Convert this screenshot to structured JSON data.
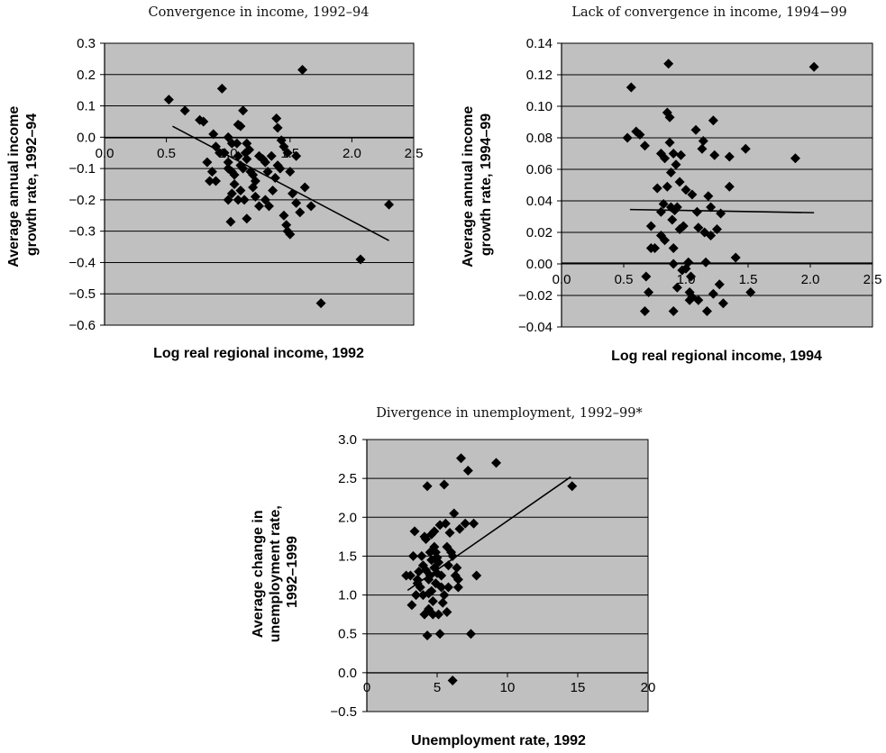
{
  "chart_data": [
    {
      "type": "scatter",
      "title": "Convergence in income, 1992–94",
      "xlabel": "Log real regional income, 1992",
      "ylabel": "Average annual income growth rate, 1992–94",
      "ylabel_lines": [
        "Average annual income",
        "growth rate, 1992–94"
      ],
      "xlim": [
        0,
        2.5
      ],
      "ylim": [
        -0.6,
        0.3
      ],
      "xticks": [
        0,
        0.5,
        1,
        1.5,
        2,
        2.5
      ],
      "xtick_labels": [
        "0.0",
        "0.5",
        "1.0",
        "1.5",
        "2.0",
        "2.5"
      ],
      "yticks": [
        -0.6,
        -0.5,
        -0.4,
        -0.3,
        -0.2,
        -0.1,
        0,
        0.1,
        0.2,
        0.3
      ],
      "ytick_labels": [
        "−0.6",
        "−0.5",
        "−0.4",
        "−0.3",
        "−0.2",
        "−0.1",
        "0.0",
        "0.1",
        "0.2",
        "0.3"
      ],
      "grid": true,
      "trendline": [
        [
          0.55,
          0.035
        ],
        [
          2.3,
          -0.33
        ]
      ],
      "points": [
        [
          0.52,
          0.12
        ],
        [
          0.65,
          0.085
        ],
        [
          0.77,
          0.055
        ],
        [
          0.8,
          0.05
        ],
        [
          0.88,
          0.01
        ],
        [
          0.9,
          -0.03
        ],
        [
          0.93,
          -0.05
        ],
        [
          0.95,
          0.155
        ],
        [
          0.97,
          -0.05
        ],
        [
          1.0,
          -0.08
        ],
        [
          0.83,
          -0.08
        ],
        [
          0.87,
          -0.11
        ],
        [
          0.85,
          -0.14
        ],
        [
          0.9,
          -0.14
        ],
        [
          1.0,
          -0.1
        ],
        [
          1.03,
          -0.11
        ],
        [
          1.05,
          -0.12
        ],
        [
          1.07,
          -0.02
        ],
        [
          1.08,
          -0.06
        ],
        [
          1.1,
          -0.09
        ],
        [
          1.12,
          -0.1
        ],
        [
          1.14,
          -0.05
        ],
        [
          1.15,
          -0.07
        ],
        [
          1.18,
          -0.11
        ],
        [
          1.2,
          -0.12
        ],
        [
          1.22,
          -0.14
        ],
        [
          1.25,
          -0.06
        ],
        [
          1.28,
          -0.07
        ],
        [
          1.3,
          -0.08
        ],
        [
          1.32,
          -0.11
        ],
        [
          1.35,
          -0.06
        ],
        [
          1.38,
          -0.13
        ],
        [
          1.4,
          -0.09
        ],
        [
          1.42,
          -0.1
        ],
        [
          1.45,
          -0.03
        ],
        [
          1.48,
          -0.05
        ],
        [
          1.5,
          -0.11
        ],
        [
          1.52,
          -0.18
        ],
        [
          1.55,
          -0.21
        ],
        [
          1.58,
          -0.24
        ],
        [
          1.0,
          0.0
        ],
        [
          1.03,
          -0.02
        ],
        [
          1.08,
          0.04
        ],
        [
          1.1,
          0.035
        ],
        [
          1.12,
          0.085
        ],
        [
          1.15,
          -0.02
        ],
        [
          1.17,
          -0.04
        ],
        [
          1.2,
          -0.16
        ],
        [
          1.22,
          -0.19
        ],
        [
          1.25,
          -0.22
        ],
        [
          1.0,
          -0.2
        ],
        [
          1.03,
          -0.18
        ],
        [
          1.05,
          -0.15
        ],
        [
          1.08,
          -0.2
        ],
        [
          1.1,
          -0.17
        ],
        [
          1.13,
          -0.2
        ],
        [
          1.02,
          -0.27
        ],
        [
          1.15,
          -0.26
        ],
        [
          1.3,
          -0.2
        ],
        [
          1.33,
          -0.22
        ],
        [
          1.36,
          -0.17
        ],
        [
          1.39,
          0.06
        ],
        [
          1.4,
          0.03
        ],
        [
          1.43,
          -0.01
        ],
        [
          1.45,
          -0.25
        ],
        [
          1.47,
          -0.28
        ],
        [
          1.48,
          -0.3
        ],
        [
          1.5,
          -0.31
        ],
        [
          1.55,
          -0.06
        ],
        [
          1.6,
          0.215
        ],
        [
          1.62,
          -0.16
        ],
        [
          1.67,
          -0.22
        ],
        [
          1.75,
          -0.53
        ],
        [
          2.07,
          -0.39
        ],
        [
          2.3,
          -0.215
        ]
      ]
    },
    {
      "type": "scatter",
      "title": "Lack of convergence in income, 1994−99",
      "xlabel": "Log real regional income, 1994",
      "ylabel": "Average annual income growth rate, 1994–99",
      "ylabel_lines": [
        "Average annual income",
        "growth rate, 1994–99"
      ],
      "xlim": [
        0,
        2.5
      ],
      "ylim": [
        -0.04,
        0.14
      ],
      "xticks": [
        0,
        0.5,
        1,
        1.5,
        2,
        2.5
      ],
      "xtick_labels": [
        "0.0",
        "0.5",
        "1.0",
        "1.5",
        "2.0",
        "2.5"
      ],
      "yticks": [
        -0.04,
        -0.02,
        0,
        0.02,
        0.04,
        0.06,
        0.08,
        0.1,
        0.12,
        0.14
      ],
      "ytick_labels": [
        "−0.04",
        "−0.02",
        "0.00",
        "0.02",
        "0.04",
        "0.06",
        "0.08",
        "0.10",
        "0.12",
        "0.14"
      ],
      "grid": true,
      "trendline": [
        [
          0.55,
          0.0345
        ],
        [
          2.03,
          0.0325
        ]
      ],
      "points": [
        [
          0.53,
          0.08
        ],
        [
          0.56,
          0.112
        ],
        [
          0.6,
          0.084
        ],
        [
          0.63,
          0.082
        ],
        [
          0.67,
          0.075
        ],
        [
          0.68,
          -0.008
        ],
        [
          0.7,
          -0.018
        ],
        [
          0.67,
          -0.03
        ],
        [
          0.72,
          0.01
        ],
        [
          0.72,
          0.024
        ],
        [
          0.75,
          0.01
        ],
        [
          0.77,
          0.048
        ],
        [
          0.8,
          0.033
        ],
        [
          0.8,
          0.07
        ],
        [
          0.8,
          0.018
        ],
        [
          0.82,
          0.038
        ],
        [
          0.83,
          0.015
        ],
        [
          0.83,
          0.067
        ],
        [
          0.85,
          0.049
        ],
        [
          0.85,
          0.096
        ],
        [
          0.86,
          0.127
        ],
        [
          0.87,
          0.093
        ],
        [
          0.87,
          0.077
        ],
        [
          0.88,
          0.058
        ],
        [
          0.88,
          0.036
        ],
        [
          0.89,
          0.028
        ],
        [
          0.9,
          0.07
        ],
        [
          0.9,
          0.01
        ],
        [
          0.9,
          0.0
        ],
        [
          0.9,
          -0.03
        ],
        [
          0.91,
          0.034
        ],
        [
          0.92,
          0.063
        ],
        [
          0.93,
          -0.015
        ],
        [
          0.93,
          0.036
        ],
        [
          0.95,
          0.052
        ],
        [
          0.95,
          0.022
        ],
        [
          0.97,
          -0.004
        ],
        [
          0.98,
          0.024
        ],
        [
          1.0,
          0.047
        ],
        [
          1.0,
          -0.003
        ],
        [
          1.02,
          0.001
        ],
        [
          1.03,
          -0.018
        ],
        [
          1.03,
          -0.023
        ],
        [
          1.04,
          -0.008
        ],
        [
          1.05,
          -0.021
        ],
        [
          1.05,
          0.044
        ],
        [
          1.08,
          0.085
        ],
        [
          1.09,
          0.033
        ],
        [
          1.1,
          0.023
        ],
        [
          1.1,
          -0.023
        ],
        [
          1.13,
          0.073
        ],
        [
          1.14,
          0.078
        ],
        [
          1.15,
          0.02
        ],
        [
          1.16,
          0.001
        ],
        [
          1.17,
          -0.03
        ],
        [
          1.18,
          0.043
        ],
        [
          1.2,
          0.018
        ],
        [
          1.2,
          0.036
        ],
        [
          1.22,
          0.091
        ],
        [
          1.23,
          0.069
        ],
        [
          1.25,
          0.022
        ],
        [
          1.27,
          -0.013
        ],
        [
          1.28,
          0.032
        ],
        [
          1.3,
          -0.025
        ],
        [
          1.35,
          0.049
        ],
        [
          1.35,
          0.068
        ],
        [
          1.4,
          0.004
        ],
        [
          1.48,
          0.073
        ],
        [
          1.52,
          -0.018
        ],
        [
          1.88,
          0.067
        ],
        [
          2.03,
          0.125
        ],
        [
          1.22,
          -0.019
        ],
        [
          0.96,
          0.069
        ]
      ]
    },
    {
      "type": "scatter",
      "title": "Divergence in unemployment, 1992–99*",
      "xlabel": "Unemployment rate, 1992",
      "ylabel": "Average change in unemployment rate, 1992–1999",
      "ylabel_lines": [
        "Average change in",
        "unemployment rate,",
        "1992–1999"
      ],
      "xlim": [
        0,
        20
      ],
      "ylim": [
        -0.5,
        3.0
      ],
      "xticks": [
        0,
        5,
        10,
        15,
        20
      ],
      "xtick_labels": [
        "0",
        "5",
        "10",
        "15",
        "20"
      ],
      "yticks": [
        -0.5,
        0,
        0.5,
        1.0,
        1.5,
        2.0,
        2.5,
        3.0
      ],
      "ytick_labels": [
        "−0.5",
        "0.0",
        "0.5",
        "1.0",
        "1.5",
        "2.0",
        "2.5",
        "3.0"
      ],
      "grid": true,
      "trendline": [
        [
          2.9,
          1.06
        ],
        [
          14.5,
          2.52
        ]
      ],
      "points": [
        [
          2.8,
          1.25
        ],
        [
          3.1,
          1.25
        ],
        [
          3.2,
          0.87
        ],
        [
          3.3,
          1.5
        ],
        [
          3.4,
          1.82
        ],
        [
          3.5,
          1.0
        ],
        [
          3.6,
          1.2
        ],
        [
          3.7,
          1.3
        ],
        [
          3.8,
          1.1
        ],
        [
          3.9,
          1.5
        ],
        [
          4.0,
          1.38
        ],
        [
          4.0,
          1.0
        ],
        [
          4.1,
          0.75
        ],
        [
          4.1,
          1.75
        ],
        [
          4.2,
          1.32
        ],
        [
          4.3,
          2.4
        ],
        [
          4.3,
          0.48
        ],
        [
          4.4,
          1.2
        ],
        [
          4.4,
          0.82
        ],
        [
          4.5,
          1.25
        ],
        [
          4.5,
          1.55
        ],
        [
          4.6,
          1.45
        ],
        [
          4.6,
          1.05
        ],
        [
          4.6,
          1.78
        ],
        [
          4.7,
          0.75
        ],
        [
          4.7,
          0.92
        ],
        [
          4.8,
          1.35
        ],
        [
          4.8,
          1.62
        ],
        [
          4.9,
          1.15
        ],
        [
          4.9,
          1.55
        ],
        [
          5.0,
          1.48
        ],
        [
          5.0,
          1.28
        ],
        [
          5.1,
          1.42
        ],
        [
          5.1,
          0.75
        ],
        [
          5.2,
          0.5
        ],
        [
          5.2,
          1.9
        ],
        [
          5.3,
          1.25
        ],
        [
          5.3,
          1.1
        ],
        [
          5.4,
          0.9
        ],
        [
          5.5,
          1.0
        ],
        [
          5.5,
          2.42
        ],
        [
          5.6,
          1.92
        ],
        [
          5.7,
          1.62
        ],
        [
          5.7,
          0.78
        ],
        [
          5.8,
          1.1
        ],
        [
          5.9,
          1.8
        ],
        [
          6.0,
          1.55
        ],
        [
          6.1,
          1.5
        ],
        [
          6.1,
          -0.1
        ],
        [
          6.2,
          2.05
        ],
        [
          6.3,
          1.25
        ],
        [
          6.4,
          1.35
        ],
        [
          6.5,
          1.1
        ],
        [
          6.5,
          1.2
        ],
        [
          6.6,
          1.85
        ],
        [
          6.7,
          2.76
        ],
        [
          7.0,
          1.92
        ],
        [
          7.2,
          2.6
        ],
        [
          7.4,
          0.5
        ],
        [
          7.6,
          1.92
        ],
        [
          7.8,
          1.25
        ],
        [
          9.2,
          2.7
        ],
        [
          14.6,
          2.4
        ],
        [
          4.2,
          1.72
        ],
        [
          4.4,
          1.02
        ],
        [
          5.8,
          1.38
        ],
        [
          3.6,
          1.15
        ],
        [
          4.8,
          1.82
        ]
      ]
    }
  ]
}
